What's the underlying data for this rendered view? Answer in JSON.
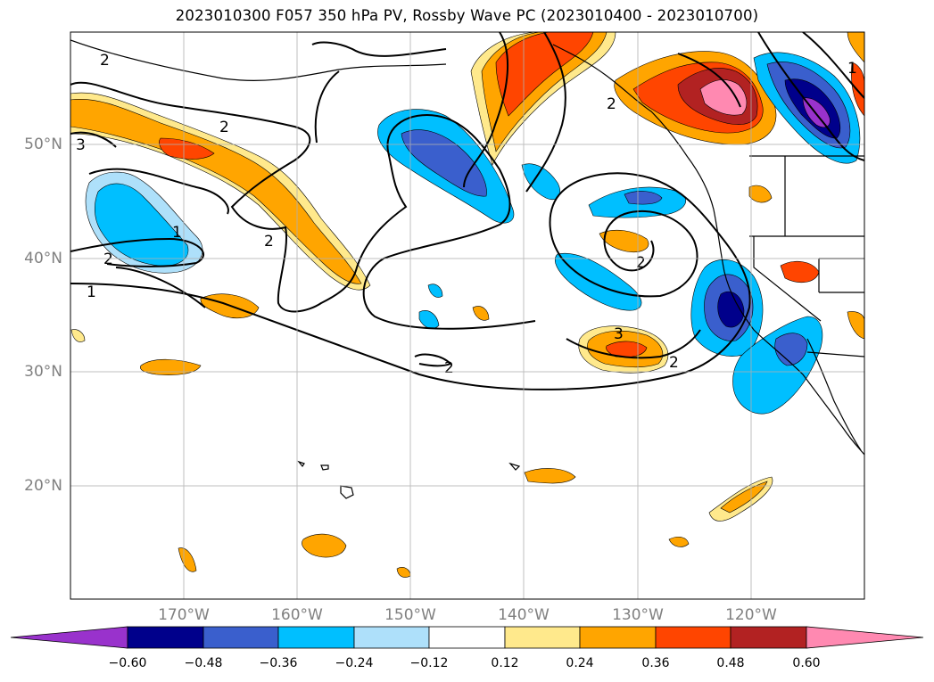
{
  "title": "2023010300 F057 350 hPa PV, Rossby Wave PC (2023010400 - 2023010700)",
  "map": {
    "lat_labels": [
      "50°N",
      "40°N",
      "30°N",
      "20°N"
    ],
    "lon_labels": [
      "170°W",
      "160°W",
      "150°W",
      "140°W",
      "130°W",
      "120°W"
    ],
    "contour_labels": [
      "2",
      "2",
      "3",
      "1",
      "2",
      "2",
      "1",
      "2",
      "2",
      "2",
      "3",
      "2",
      "1"
    ]
  },
  "colorbar": {
    "ticks": [
      "−0.60",
      "−0.48",
      "−0.36",
      "−0.24",
      "−0.12",
      "0.12",
      "0.24",
      "0.36",
      "0.48",
      "0.60"
    ],
    "colors": [
      "#9932CC",
      "#00008B",
      "#3A5FCD",
      "#00BFFF",
      "#AEE0FA",
      "#FFFFFF",
      "#FFE98C",
      "#FFA500",
      "#FF4500",
      "#B22222",
      "#FF89B1"
    ]
  }
}
